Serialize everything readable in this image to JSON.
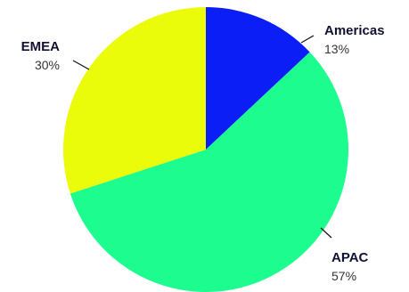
{
  "chart_data": {
    "type": "pie",
    "title": "",
    "start_angle_deg": 0,
    "direction": "clockwise",
    "slices": [
      {
        "label": "Americas",
        "value": 13,
        "display": "13%",
        "color": "#0a1ef5"
      },
      {
        "label": "APAC",
        "value": 57,
        "display": "57%",
        "color": "#1dfc8f"
      },
      {
        "label": "EMEA",
        "value": 30,
        "display": "30%",
        "color": "#ebfc0a"
      }
    ]
  }
}
